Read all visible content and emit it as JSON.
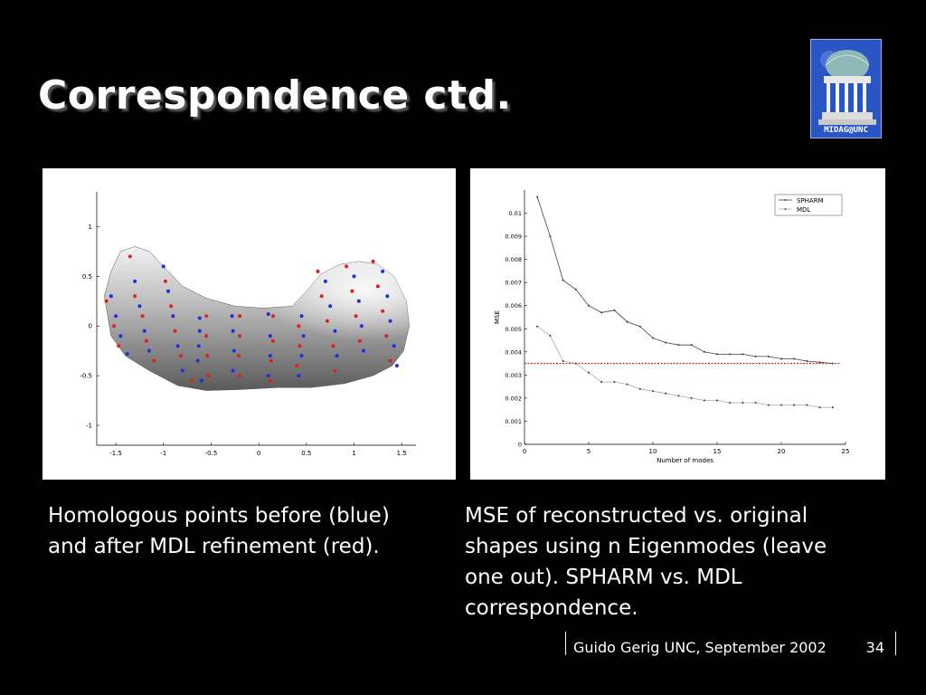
{
  "slide": {
    "title": "Correspondence ctd.",
    "logo_text": "MIDAG@UNC",
    "caption_left": [
      "Homologous points before (blue)",
      "and after MDL refinement (red)."
    ],
    "caption_right": [
      "MSE of reconstructed vs. original",
      "shapes using n Eigenmodes (leave",
      "one out). SPHARM vs. MDL",
      "correspondence."
    ],
    "footer": "Guido Gerig UNC, September 2002",
    "page_number": "34"
  },
  "chart_data": [
    {
      "type": "scatter",
      "x_ticks": [
        "-1.5",
        "-1",
        "-0.5",
        "0",
        "0.5",
        "1",
        "1.5"
      ],
      "y_ticks": [
        "1",
        "0.5",
        "0",
        "-0.5",
        "-1"
      ],
      "xlim": [
        -1.7,
        1.65
      ],
      "ylim": [
        -1.2,
        1.35
      ],
      "series": [
        {
          "color": "#1f2ee0",
          "points": [
            [
              -1.55,
              0.3
            ],
            [
              -1.5,
              0.1
            ],
            [
              -1.45,
              -0.1
            ],
            [
              -1.38,
              -0.28
            ],
            [
              -1.3,
              0.45
            ],
            [
              -1.25,
              0.2
            ],
            [
              -1.2,
              -0.05
            ],
            [
              -1.15,
              -0.25
            ],
            [
              -1.0,
              0.6
            ],
            [
              -0.95,
              0.35
            ],
            [
              -0.9,
              0.1
            ],
            [
              -0.85,
              -0.2
            ],
            [
              -0.8,
              -0.45
            ],
            [
              -0.62,
              0.08
            ],
            [
              -0.62,
              -0.05
            ],
            [
              -0.63,
              -0.2
            ],
            [
              -0.64,
              -0.35
            ],
            [
              -0.6,
              -0.55
            ],
            [
              -0.28,
              0.1
            ],
            [
              -0.27,
              -0.05
            ],
            [
              -0.26,
              -0.25
            ],
            [
              -0.27,
              -0.45
            ],
            [
              0.1,
              0.12
            ],
            [
              0.12,
              -0.1
            ],
            [
              0.12,
              -0.3
            ],
            [
              0.1,
              -0.5
            ],
            [
              0.45,
              0.1
            ],
            [
              0.47,
              -0.1
            ],
            [
              0.45,
              -0.3
            ],
            [
              0.42,
              -0.5
            ],
            [
              0.7,
              0.45
            ],
            [
              0.75,
              0.2
            ],
            [
              0.8,
              -0.05
            ],
            [
              0.82,
              -0.3
            ],
            [
              1.0,
              0.5
            ],
            [
              1.05,
              0.25
            ],
            [
              1.08,
              0.0
            ],
            [
              1.1,
              -0.25
            ],
            [
              1.3,
              0.55
            ],
            [
              1.35,
              0.3
            ],
            [
              1.38,
              0.05
            ],
            [
              1.42,
              -0.2
            ],
            [
              1.45,
              -0.4
            ]
          ]
        },
        {
          "color": "#e01f1f",
          "points": [
            [
              -1.6,
              0.25
            ],
            [
              -1.52,
              0.0
            ],
            [
              -1.47,
              -0.2
            ],
            [
              -1.35,
              0.7
            ],
            [
              -1.3,
              0.3
            ],
            [
              -1.22,
              0.1
            ],
            [
              -1.18,
              -0.15
            ],
            [
              -1.1,
              -0.35
            ],
            [
              -0.98,
              0.45
            ],
            [
              -0.92,
              0.2
            ],
            [
              -0.88,
              -0.05
            ],
            [
              -0.82,
              -0.3
            ],
            [
              -0.7,
              -0.55
            ],
            [
              -0.55,
              0.1
            ],
            [
              -0.55,
              -0.1
            ],
            [
              -0.54,
              -0.3
            ],
            [
              -0.53,
              -0.5
            ],
            [
              -0.2,
              0.1
            ],
            [
              -0.2,
              -0.1
            ],
            [
              -0.21,
              -0.3
            ],
            [
              -0.2,
              -0.5
            ],
            [
              0.15,
              0.1
            ],
            [
              0.15,
              -0.15
            ],
            [
              0.13,
              -0.35
            ],
            [
              0.12,
              -0.55
            ],
            [
              0.42,
              0.0
            ],
            [
              0.43,
              -0.2
            ],
            [
              0.4,
              -0.4
            ],
            [
              0.62,
              0.55
            ],
            [
              0.66,
              0.3
            ],
            [
              0.72,
              0.05
            ],
            [
              0.78,
              -0.2
            ],
            [
              0.8,
              -0.45
            ],
            [
              0.92,
              0.6
            ],
            [
              0.98,
              0.35
            ],
            [
              1.02,
              0.1
            ],
            [
              1.06,
              -0.15
            ],
            [
              1.2,
              0.65
            ],
            [
              1.25,
              0.4
            ],
            [
              1.3,
              0.15
            ],
            [
              1.34,
              -0.1
            ],
            [
              1.38,
              -0.35
            ]
          ]
        }
      ]
    },
    {
      "type": "line",
      "xlabel": "Number of modes",
      "ylabel": "MSE",
      "xlim": [
        0,
        25
      ],
      "ylim": [
        0,
        0.011
      ],
      "x_ticks": [
        "0",
        "5",
        "10",
        "15",
        "20",
        "25"
      ],
      "y_ticks": [
        "0",
        "0.001",
        "0.002",
        "0.003",
        "0.004",
        "0.005",
        "0.006",
        "0.007",
        "0.008",
        "0.009",
        "0.01"
      ],
      "x": [
        1,
        2,
        3,
        4,
        5,
        6,
        7,
        8,
        9,
        10,
        11,
        12,
        13,
        14,
        15,
        16,
        17,
        18,
        19,
        20,
        21,
        22,
        23,
        24
      ],
      "series": [
        {
          "name": "SPHARM",
          "color": "#444444",
          "values": [
            0.0107,
            0.009,
            0.0071,
            0.0067,
            0.006,
            0.0057,
            0.0058,
            0.0053,
            0.0051,
            0.0046,
            0.0044,
            0.0043,
            0.0043,
            0.004,
            0.0039,
            0.0039,
            0.0039,
            0.0038,
            0.0038,
            0.0037,
            0.0037,
            0.0036,
            0.00355,
            0.0035
          ]
        },
        {
          "name": "MDL",
          "color": "#aaaaaa",
          "values": [
            0.0051,
            0.0047,
            0.0036,
            0.0035,
            0.0031,
            0.0027,
            0.0027,
            0.0026,
            0.0024,
            0.0023,
            0.0022,
            0.0021,
            0.002,
            0.0019,
            0.0019,
            0.0018,
            0.0018,
            0.0018,
            0.0017,
            0.0017,
            0.0017,
            0.0017,
            0.0016,
            0.0016
          ]
        }
      ],
      "reference_line": {
        "value": 0.0035,
        "color": "#cc0000"
      }
    }
  ]
}
